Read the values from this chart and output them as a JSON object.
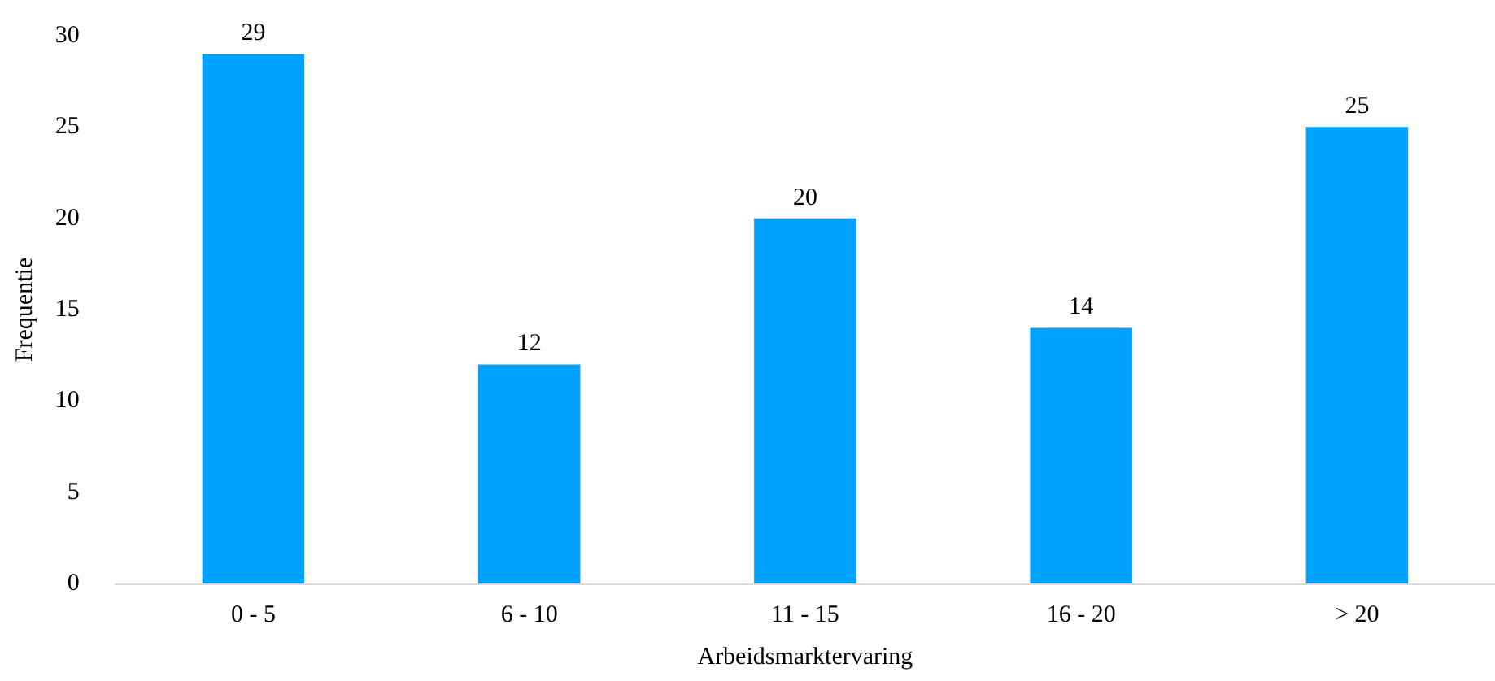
{
  "chart_data": {
    "type": "bar",
    "xlabel": "Arbeidsmarktervaring",
    "ylabel": "Frequentie",
    "categories": [
      "0 - 5",
      "6 - 10",
      "11 - 15",
      "16 - 20",
      "> 20"
    ],
    "values": [
      29,
      12,
      20,
      14,
      25
    ],
    "color": "#00a2ff",
    "ylim": [
      0,
      30
    ],
    "yticks": [
      0,
      5,
      10,
      15,
      20,
      25,
      30
    ],
    "data_labels": true
  }
}
